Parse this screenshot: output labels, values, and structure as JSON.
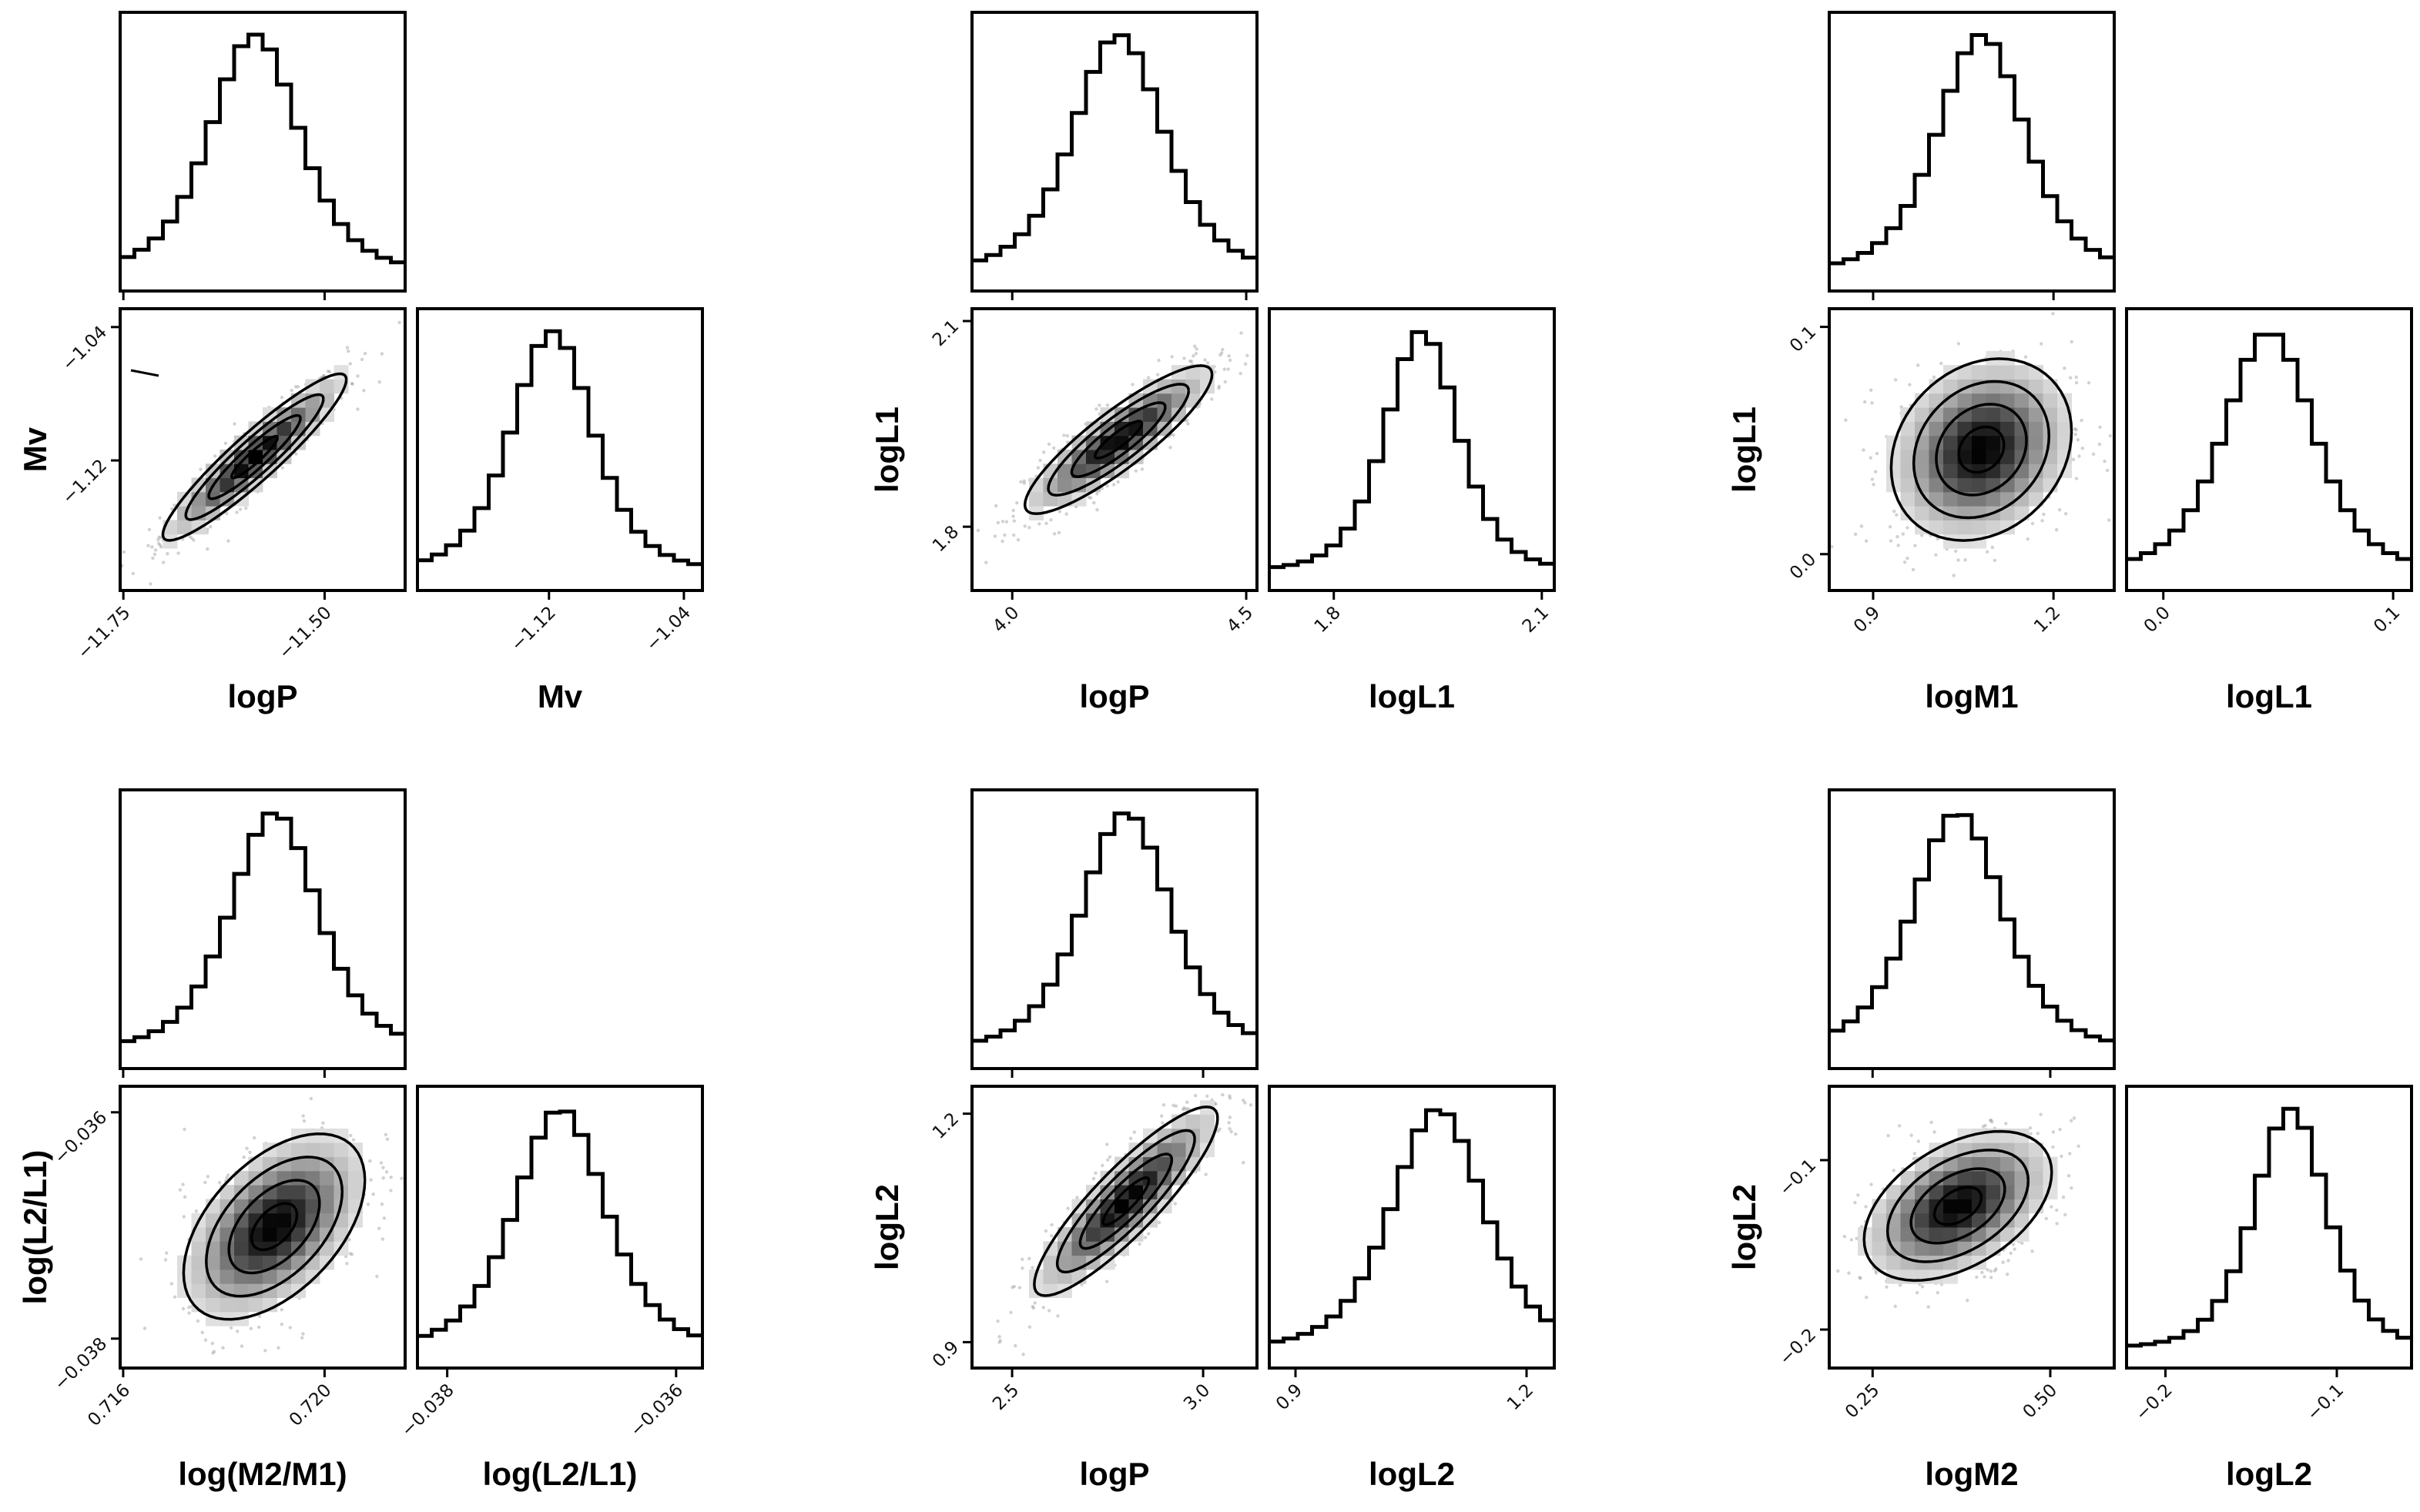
{
  "colors": {
    "line": "#000000",
    "scatter": "#9a9a9a",
    "background": "#ffffff"
  },
  "chart_data": [
    {
      "type": "corner",
      "x_label": "logP",
      "y_label": "Mv",
      "x_ticks": [
        "−11.75",
        "−11.50"
      ],
      "x_tick_values": [
        -11.75,
        -11.5
      ],
      "x_range": [
        -11.754,
        -11.4
      ],
      "y_ticks": [
        "−1.12",
        "−1.04"
      ],
      "y_tick_values": [
        -1.12,
        -1.04
      ],
      "y_range": [
        -1.198,
        -1.029
      ],
      "x_mean": -11.587,
      "x_std": 0.057,
      "y_mean": -1.118,
      "y_std": 0.025,
      "correlation": 0.93
    },
    {
      "type": "corner",
      "x_label": "logP",
      "y_label": "logL1",
      "x_ticks": [
        "4.0",
        "4.5"
      ],
      "x_tick_values": [
        4.0,
        4.5
      ],
      "x_range": [
        3.914,
        4.523
      ],
      "y_ticks": [
        "1.8",
        "2.1"
      ],
      "y_tick_values": [
        1.8,
        2.1
      ],
      "y_range": [
        1.707,
        2.118
      ],
      "x_mean": 4.227,
      "x_std": 0.1,
      "y_mean": 1.927,
      "y_std": 0.054,
      "correlation": 0.88
    },
    {
      "type": "corner",
      "x_label": "logM1",
      "y_label": "logL1",
      "x_ticks": [
        "0.9",
        "1.2"
      ],
      "x_tick_values": [
        0.9,
        1.2
      ],
      "x_range": [
        0.827,
        1.301
      ],
      "y_ticks": [
        "0.0",
        "0.1"
      ],
      "y_tick_values": [
        0.0,
        0.1
      ],
      "y_range": [
        -0.016,
        0.108
      ],
      "x_mean": 1.08,
      "x_std": 0.075,
      "y_mean": 0.046,
      "y_std": 0.02,
      "correlation": 0.2
    },
    {
      "type": "corner",
      "x_label": "log(M2/M1)",
      "y_label": "log(L2/L1)",
      "x_ticks": [
        "0.716",
        "0.720"
      ],
      "x_tick_values": [
        0.716,
        0.72
      ],
      "x_range": [
        0.71594,
        0.7216
      ],
      "y_ticks": [
        "−0.038",
        "−0.036"
      ],
      "y_tick_values": [
        -0.038,
        -0.036
      ],
      "y_range": [
        -0.03826,
        -0.03577
      ],
      "x_mean": 0.719,
      "x_std": 0.0009,
      "y_mean": -0.03701,
      "y_std": 0.00041,
      "correlation": 0.5
    },
    {
      "type": "corner",
      "x_label": "logP",
      "y_label": "logL2",
      "x_ticks": [
        "2.5",
        "3.0"
      ],
      "x_tick_values": [
        2.5,
        3.0
      ],
      "x_range": [
        2.395,
        3.141
      ],
      "y_ticks": [
        "0.9",
        "1.2"
      ],
      "y_tick_values": [
        0.9,
        1.2
      ],
      "y_range": [
        0.866,
        1.236
      ],
      "x_mean": 2.798,
      "x_std": 0.12,
      "y_mean": 1.085,
      "y_std": 0.062,
      "correlation": 0.88
    },
    {
      "type": "corner",
      "x_label": "logM2",
      "y_label": "logL2",
      "x_ticks": [
        "0.25",
        "0.50"
      ],
      "x_tick_values": [
        0.25,
        0.5
      ],
      "x_range": [
        0.189,
        0.59
      ],
      "y_ticks": [
        "−0.2",
        "−0.1"
      ],
      "y_tick_values": [
        -0.2,
        -0.1
      ],
      "y_range": [
        -0.2227,
        -0.0564
      ],
      "x_mean": 0.37,
      "x_std": 0.066,
      "y_mean": -0.127,
      "y_std": 0.022,
      "correlation": 0.45
    }
  ]
}
